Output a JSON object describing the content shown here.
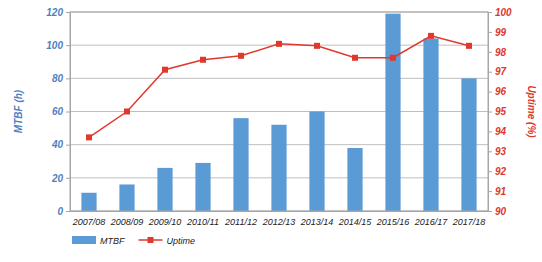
{
  "chart_data": {
    "type": "bar",
    "categories": [
      "2007/08",
      "2008/09",
      "2009/10",
      "2010/11",
      "2011/12",
      "2012/13",
      "2013/14",
      "2014/15",
      "2015/16",
      "2016/17",
      "2017/18"
    ],
    "series": [
      {
        "name": "MTBF",
        "type": "bar",
        "color": "#5b9bd5",
        "values": [
          11,
          16,
          26,
          29,
          56,
          52,
          60,
          38,
          119,
          104,
          80
        ]
      },
      {
        "name": "Uptime",
        "type": "line",
        "axis": "y2",
        "color": "#e0382c",
        "marker": "square",
        "values": [
          93.7,
          95.0,
          97.1,
          97.6,
          97.8,
          98.4,
          98.3,
          97.7,
          97.7,
          98.8,
          98.3
        ]
      }
    ],
    "ylabel": "MTBF (h)",
    "y2label": "Uptime (%)",
    "ylim": [
      0,
      120
    ],
    "yticks": [
      0,
      20,
      40,
      60,
      80,
      100,
      120
    ],
    "y2lim": [
      90,
      100
    ],
    "y2ticks": [
      90,
      91,
      92,
      93,
      94,
      95,
      96,
      97,
      98,
      99,
      100
    ],
    "grid": true,
    "legend": "bottom-left"
  }
}
